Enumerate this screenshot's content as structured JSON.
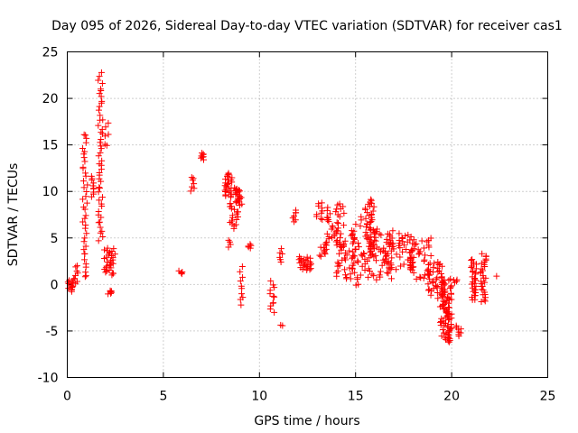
{
  "chart_data": {
    "type": "scatter",
    "title": "Day 095 of 2026, Sidereal Day-to-day VTEC variation (SDTVAR) for receiver cas1",
    "xlabel": "GPS time / hours",
    "ylabel": "SDTVAR / TECUs",
    "xlim": [
      0,
      25
    ],
    "ylim": [
      -10,
      25
    ],
    "xticks": [
      0,
      5,
      10,
      15,
      20,
      25
    ],
    "yticks": [
      -10,
      -5,
      0,
      5,
      10,
      15,
      20,
      25
    ],
    "grid": true,
    "marker": "+",
    "color": "#ff0000",
    "clusters": [
      {
        "x0": 0.0,
        "x1": 0.35,
        "ymin": -0.8,
        "ymax": 0.6,
        "n": 14
      },
      {
        "x0": 0.35,
        "x1": 0.55,
        "ymin": 0.0,
        "ymax": 2.2,
        "n": 8
      },
      {
        "x0": 0.8,
        "x1": 1.05,
        "ymin": 0.5,
        "ymax": 16.5,
        "n": 40
      },
      {
        "x0": 1.2,
        "x1": 1.45,
        "ymin": 9.3,
        "ymax": 11.8,
        "n": 10
      },
      {
        "x0": 1.6,
        "x1": 1.85,
        "ymin": 4.5,
        "ymax": 22.8,
        "n": 50
      },
      {
        "x0": 1.9,
        "x1": 2.2,
        "ymin": 14.5,
        "ymax": 17.5,
        "n": 6
      },
      {
        "x0": 1.9,
        "x1": 2.5,
        "ymin": 1.0,
        "ymax": 4.0,
        "n": 30
      },
      {
        "x0": 2.1,
        "x1": 2.3,
        "ymin": -1.1,
        "ymax": -0.6,
        "n": 6
      },
      {
        "x0": 5.8,
        "x1": 6.0,
        "ymin": 1.1,
        "ymax": 1.5,
        "n": 4
      },
      {
        "x0": 6.4,
        "x1": 6.6,
        "ymin": 10.0,
        "ymax": 11.7,
        "n": 7
      },
      {
        "x0": 6.95,
        "x1": 7.15,
        "ymin": 13.4,
        "ymax": 14.2,
        "n": 8
      },
      {
        "x0": 8.2,
        "x1": 8.6,
        "ymin": 9.5,
        "ymax": 12.0,
        "n": 25
      },
      {
        "x0": 8.4,
        "x1": 8.9,
        "ymin": 6.0,
        "ymax": 10.5,
        "n": 30
      },
      {
        "x0": 8.3,
        "x1": 8.5,
        "ymin": 4.0,
        "ymax": 4.8,
        "n": 4
      },
      {
        "x0": 8.8,
        "x1": 9.1,
        "ymin": 8.5,
        "ymax": 10.3,
        "n": 15
      },
      {
        "x0": 8.95,
        "x1": 9.15,
        "ymin": -2.4,
        "ymax": 2.0,
        "n": 10
      },
      {
        "x0": 9.4,
        "x1": 9.6,
        "ymin": 3.8,
        "ymax": 4.4,
        "n": 5
      },
      {
        "x0": 10.5,
        "x1": 10.8,
        "ymin": -3.2,
        "ymax": 0.5,
        "n": 12
      },
      {
        "x0": 11.0,
        "x1": 11.2,
        "ymin": 2.3,
        "ymax": 3.9,
        "n": 6
      },
      {
        "x0": 11.1,
        "x1": 11.3,
        "ymin": -4.5,
        "ymax": -4.3,
        "n": 2
      },
      {
        "x0": 11.7,
        "x1": 11.9,
        "ymin": 6.5,
        "ymax": 8.2,
        "n": 7
      },
      {
        "x0": 12.0,
        "x1": 12.7,
        "ymin": 1.5,
        "ymax": 3.0,
        "n": 25
      },
      {
        "x0": 12.8,
        "x1": 13.3,
        "ymin": 6.8,
        "ymax": 8.9,
        "n": 10
      },
      {
        "x0": 13.1,
        "x1": 13.5,
        "ymin": 3.0,
        "ymax": 4.5,
        "n": 12
      },
      {
        "x0": 13.5,
        "x1": 14.5,
        "ymin": 4.0,
        "ymax": 8.7,
        "n": 40
      },
      {
        "x0": 14.0,
        "x1": 15.0,
        "ymin": 0.5,
        "ymax": 5.5,
        "n": 40
      },
      {
        "x0": 14.8,
        "x1": 15.3,
        "ymin": -0.3,
        "ymax": 7.3,
        "n": 25
      },
      {
        "x0": 15.5,
        "x1": 16.0,
        "ymin": 3.0,
        "ymax": 9.2,
        "n": 45
      },
      {
        "x0": 15.3,
        "x1": 17.0,
        "ymin": 0.5,
        "ymax": 6.0,
        "n": 60
      },
      {
        "x0": 16.5,
        "x1": 18.0,
        "ymin": 1.5,
        "ymax": 5.5,
        "n": 50
      },
      {
        "x0": 17.8,
        "x1": 19.0,
        "ymin": 0.5,
        "ymax": 5.0,
        "n": 45
      },
      {
        "x0": 18.7,
        "x1": 19.5,
        "ymin": -1.5,
        "ymax": 2.5,
        "n": 35
      },
      {
        "x0": 19.4,
        "x1": 20.0,
        "ymin": -6.2,
        "ymax": 0.8,
        "n": 90
      },
      {
        "x0": 20.1,
        "x1": 20.3,
        "ymin": 0.2,
        "ymax": 0.6,
        "n": 4
      },
      {
        "x0": 20.2,
        "x1": 20.5,
        "ymin": -5.6,
        "ymax": -4.3,
        "n": 8
      },
      {
        "x0": 21.0,
        "x1": 21.3,
        "ymin": -1.8,
        "ymax": 2.8,
        "n": 30
      },
      {
        "x0": 21.5,
        "x1": 21.8,
        "ymin": -2.0,
        "ymax": 3.4,
        "n": 30
      },
      {
        "x0": 22.3,
        "x1": 22.4,
        "ymin": 0.9,
        "ymax": 1.0,
        "n": 1
      }
    ]
  }
}
